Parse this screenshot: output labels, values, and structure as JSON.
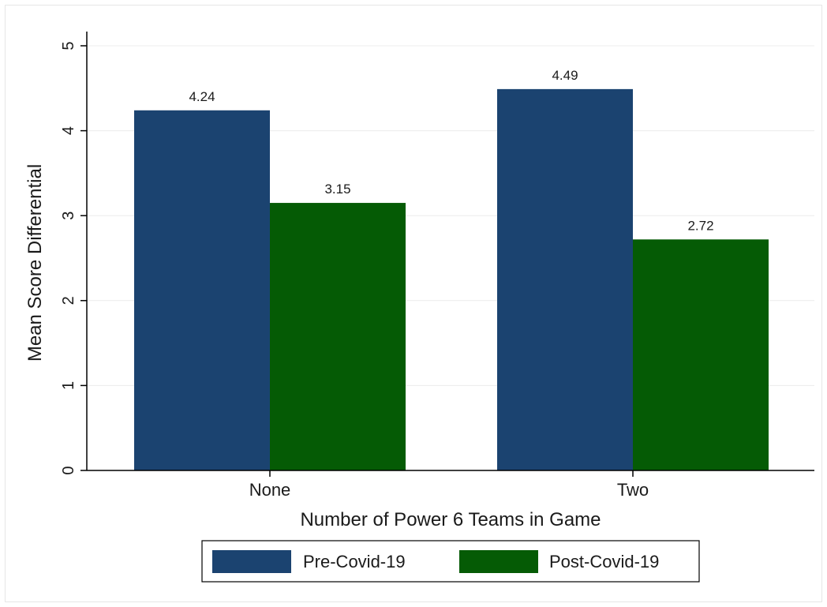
{
  "chart_data": {
    "type": "bar",
    "categories": [
      "None",
      "Two"
    ],
    "series": [
      {
        "name": "Pre-Covid-19",
        "values": [
          4.24,
          4.49
        ],
        "color": "#1b4370"
      },
      {
        "name": "Post-Covid-19",
        "values": [
          3.15,
          2.72
        ],
        "color": "#055b05"
      }
    ],
    "data_labels": [
      [
        "4.24",
        "4.49"
      ],
      [
        "3.15",
        "2.72"
      ]
    ],
    "title": "",
    "xlabel": "Number of Power 6 Teams in Game",
    "ylabel": "Mean Score Differential",
    "ylim": [
      0,
      5
    ],
    "yticks": [
      0,
      1,
      2,
      3,
      4,
      5
    ],
    "grid": true,
    "legend_position": "bottom"
  }
}
